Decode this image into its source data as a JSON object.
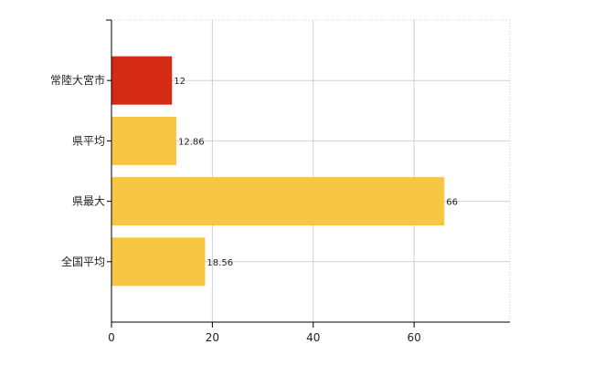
{
  "chart_data": {
    "type": "bar",
    "orientation": "horizontal",
    "categories": [
      "常陸大宮市",
      "県平均",
      "県最大",
      "全国平均"
    ],
    "values": [
      12,
      12.86,
      66,
      18.56
    ],
    "data_labels": [
      "12",
      "12.86",
      "66",
      "18.56"
    ],
    "x_ticks": [
      0,
      20,
      40,
      60
    ],
    "xlim": [
      0,
      79
    ],
    "title": "",
    "xlabel": "",
    "ylabel": "",
    "grid": true,
    "colors": [
      "#d42a16",
      "#f7c744",
      "#f7c744",
      "#f7c744"
    ],
    "highlight_color": "#d42a16",
    "bar_color": "#f7c744",
    "grid_color": "#d0d0d0"
  }
}
